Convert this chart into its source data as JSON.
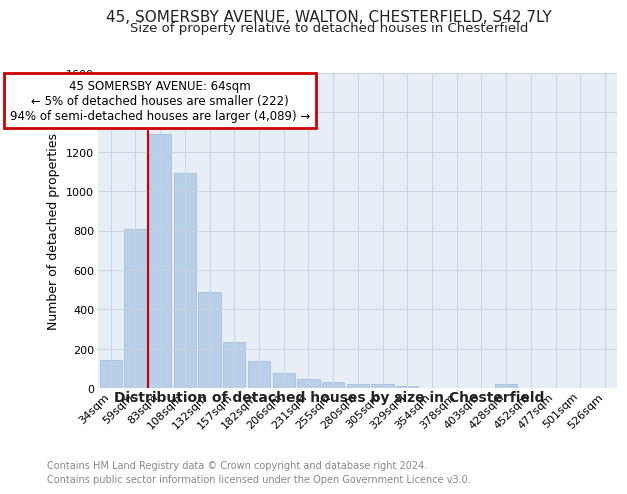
{
  "title": "45, SOMERSBY AVENUE, WALTON, CHESTERFIELD, S42 7LY",
  "subtitle": "Size of property relative to detached houses in Chesterfield",
  "xlabel": "Distribution of detached houses by size in Chesterfield",
  "ylabel": "Number of detached properties",
  "categories": [
    "34sqm",
    "59sqm",
    "83sqm",
    "108sqm",
    "132sqm",
    "157sqm",
    "182sqm",
    "206sqm",
    "231sqm",
    "255sqm",
    "280sqm",
    "305sqm",
    "329sqm",
    "354sqm",
    "378sqm",
    "403sqm",
    "428sqm",
    "452sqm",
    "477sqm",
    "501sqm",
    "526sqm"
  ],
  "values": [
    140,
    810,
    1290,
    1090,
    490,
    235,
    135,
    75,
    45,
    30,
    22,
    18,
    10,
    0,
    0,
    0,
    20,
    0,
    0,
    0,
    0
  ],
  "bar_color": "#b8cfe8",
  "bar_edge_color": "#9ab8d8",
  "vline_x": 1.5,
  "vline_color": "#cc0000",
  "annotation_text": "45 SOMERSBY AVENUE: 64sqm\n← 5% of detached houses are smaller (222)\n94% of semi-detached houses are larger (4,089) →",
  "annotation_box_color": "#ffffff",
  "annotation_box_edge_color": "#cc0000",
  "ylim": [
    0,
    1600
  ],
  "yticks": [
    0,
    200,
    400,
    600,
    800,
    1000,
    1200,
    1400,
    1600
  ],
  "footer_line1": "Contains HM Land Registry data © Crown copyright and database right 2024.",
  "footer_line2": "Contains public sector information licensed under the Open Government Licence v3.0.",
  "bg_color": "#ffffff",
  "plot_bg_color": "#e8eef5",
  "grid_color": "#c8d4e0",
  "title_fontsize": 11,
  "subtitle_fontsize": 9.5,
  "tick_fontsize": 8,
  "ylabel_fontsize": 9,
  "xlabel_fontsize": 10,
  "annotation_fontsize": 8.5,
  "footer_fontsize": 7,
  "footer_color": "#888888"
}
